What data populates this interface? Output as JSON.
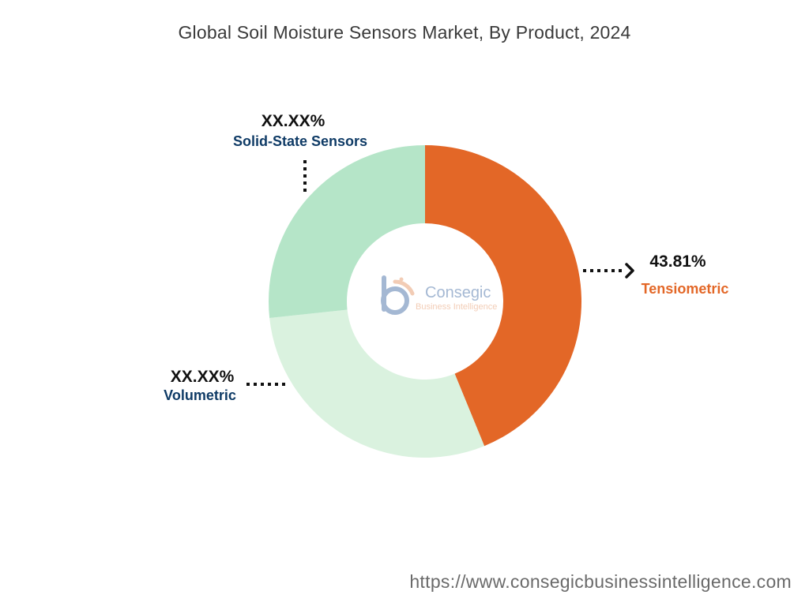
{
  "chart_data": {
    "type": "pie",
    "title": "Global Soil Moisture Sensors Market, By Product, 2024",
    "categories": [
      "Tensiometric",
      "Volumetric",
      "Solid-State Sensors"
    ],
    "series": [
      {
        "values": [
          43.81,
          29.5,
          26.69
        ]
      }
    ],
    "value_labels": [
      "43.81%",
      "XX.XX%",
      "XX.XX%"
    ],
    "colors": [
      "#E36727",
      "#DAF2DF",
      "#B5E5C8"
    ],
    "label_colors": [
      "#E36727",
      "#0F3B66",
      "#0F3B66"
    ],
    "donut": true,
    "legend": "none"
  },
  "watermark": {
    "name": "Consegic",
    "tagline": "Business Intelligence"
  },
  "footer": {
    "url": "https://www.consegicbusinessintelligence.com"
  }
}
